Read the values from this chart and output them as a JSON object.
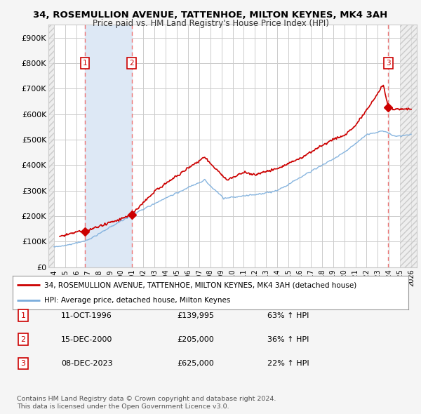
{
  "title": "34, ROSEMULLION AVENUE, TATTENHOE, MILTON KEYNES, MK4 3AH",
  "subtitle": "Price paid vs. HM Land Registry's House Price Index (HPI)",
  "legend_line1": "34, ROSEMULLION AVENUE, TATTENHOE, MILTON KEYNES, MK4 3AH (detached house)",
  "legend_line2": "HPI: Average price, detached house, Milton Keynes",
  "footer1": "Contains HM Land Registry data © Crown copyright and database right 2024.",
  "footer2": "This data is licensed under the Open Government Licence v3.0.",
  "transactions": [
    {
      "num": 1,
      "date": "11-OCT-1996",
      "price": 139995,
      "pct": "63%",
      "dir": "↑",
      "x": 1996.78
    },
    {
      "num": 2,
      "date": "15-DEC-2000",
      "price": 205000,
      "pct": "36%",
      "dir": "↑",
      "x": 2000.96
    },
    {
      "num": 3,
      "date": "08-DEC-2023",
      "price": 625000,
      "pct": "22%",
      "dir": "↑",
      "x": 2023.94
    }
  ],
  "ylim": [
    0,
    950000
  ],
  "xlim": [
    1993.5,
    2026.5
  ],
  "yticks": [
    0,
    100000,
    200000,
    300000,
    400000,
    500000,
    600000,
    700000,
    800000,
    900000
  ],
  "ytick_labels": [
    "£0",
    "£100K",
    "£200K",
    "£300K",
    "£400K",
    "£500K",
    "£600K",
    "£700K",
    "£800K",
    "£900K"
  ],
  "xticks": [
    1994,
    1995,
    1996,
    1997,
    1998,
    1999,
    2000,
    2001,
    2002,
    2003,
    2004,
    2005,
    2006,
    2007,
    2008,
    2009,
    2010,
    2011,
    2012,
    2013,
    2014,
    2015,
    2016,
    2017,
    2018,
    2019,
    2020,
    2021,
    2022,
    2023,
    2024,
    2025,
    2026
  ],
  "red_color": "#cc0000",
  "blue_color": "#7aaddc",
  "shade_color": "#dde8f5",
  "dashed_color": "#ee7777",
  "grid_color": "#cccccc",
  "plot_bg": "#ffffff",
  "outer_bg": "#f5f5f5"
}
